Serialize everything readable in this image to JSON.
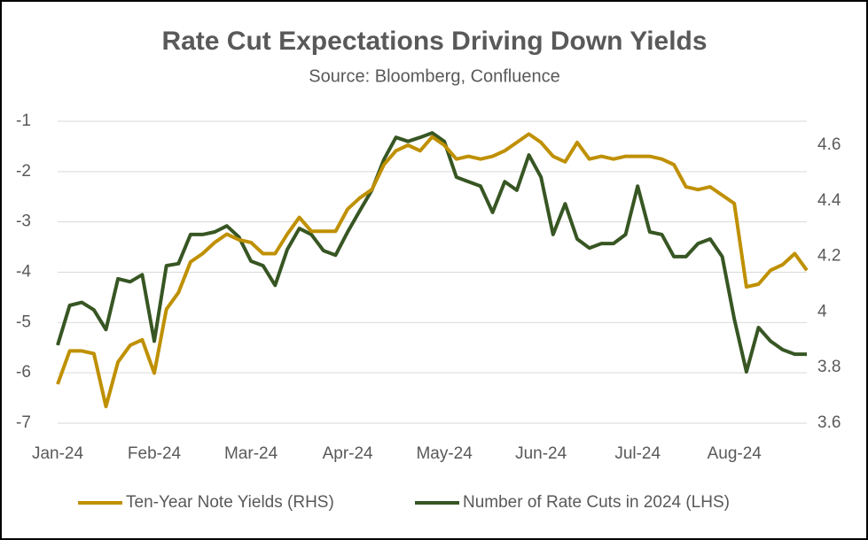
{
  "chart_data": {
    "type": "line",
    "title": "Rate Cut Expectations Driving Down Yields",
    "subtitle": "Source: Bloomberg, Confluence",
    "categories": [
      "Jan-24",
      null,
      null,
      null,
      null,
      null,
      null,
      null,
      "Feb-24",
      null,
      null,
      null,
      null,
      null,
      null,
      null,
      "Mar-24",
      null,
      null,
      null,
      null,
      null,
      null,
      null,
      "Apr-24",
      null,
      null,
      null,
      null,
      null,
      null,
      null,
      "May-24",
      null,
      null,
      null,
      null,
      null,
      null,
      null,
      "Jun-24",
      null,
      null,
      null,
      null,
      null,
      null,
      null,
      "Jul-24",
      null,
      null,
      null,
      null,
      null,
      null,
      null,
      "Aug-24",
      null,
      null,
      null,
      null,
      null,
      null
    ],
    "series": [
      {
        "name": "Ten-Year Note Yields (RHS)",
        "color": "#bf9000",
        "axis": "y2",
        "values": [
          3.74,
          3.86,
          3.86,
          3.85,
          3.66,
          3.82,
          3.88,
          3.9,
          3.78,
          4.01,
          4.07,
          4.18,
          4.21,
          4.25,
          4.28,
          4.26,
          4.25,
          4.21,
          4.21,
          4.28,
          4.34,
          4.29,
          4.29,
          4.29,
          4.37,
          4.41,
          4.44,
          4.53,
          4.58,
          4.6,
          4.58,
          4.63,
          4.6,
          4.55,
          4.56,
          4.55,
          4.56,
          4.58,
          4.61,
          4.64,
          4.61,
          4.56,
          4.54,
          4.61,
          4.55,
          4.56,
          4.55,
          4.56,
          4.56,
          4.56,
          4.55,
          4.53,
          4.45,
          4.44,
          4.45,
          4.42,
          4.39,
          4.09,
          4.1,
          4.15,
          4.17,
          4.21,
          4.15
        ]
      },
      {
        "name": "Number of Rate Cuts in 2024 (LHS)",
        "color": "#375623",
        "values": [
          -5.45,
          -4.66,
          -4.6,
          -4.75,
          -5.14,
          -4.13,
          -4.19,
          -4.05,
          -5.37,
          -3.87,
          -3.83,
          -3.25,
          -3.25,
          -3.2,
          -3.08,
          -3.3,
          -3.78,
          -3.87,
          -4.26,
          -3.55,
          -3.13,
          -3.25,
          -3.57,
          -3.66,
          -3.2,
          -2.78,
          -2.37,
          -1.76,
          -1.32,
          -1.4,
          -1.32,
          -1.23,
          -1.4,
          -2.11,
          -2.2,
          -2.29,
          -2.81,
          -2.2,
          -2.37,
          -1.67,
          -2.11,
          -3.25,
          -2.64,
          -3.34,
          -3.52,
          -3.43,
          -3.43,
          -3.25,
          -2.29,
          -3.2,
          -3.25,
          -3.69,
          -3.69,
          -3.43,
          -3.34,
          -3.69,
          -4.93,
          -5.98,
          -5.1,
          -5.37,
          -5.54,
          -5.63,
          -5.63
        ]
      }
    ],
    "ylim": [
      -7,
      -1
    ],
    "yticks": [
      -1,
      -2,
      -3,
      -4,
      -5,
      -6,
      -7
    ],
    "y2lim": [
      3.6,
      4.686
    ],
    "y2ticks": [
      3.6,
      3.8,
      4,
      4.2,
      4.4,
      4.6
    ],
    "grid": true,
    "legend": "bottom"
  }
}
